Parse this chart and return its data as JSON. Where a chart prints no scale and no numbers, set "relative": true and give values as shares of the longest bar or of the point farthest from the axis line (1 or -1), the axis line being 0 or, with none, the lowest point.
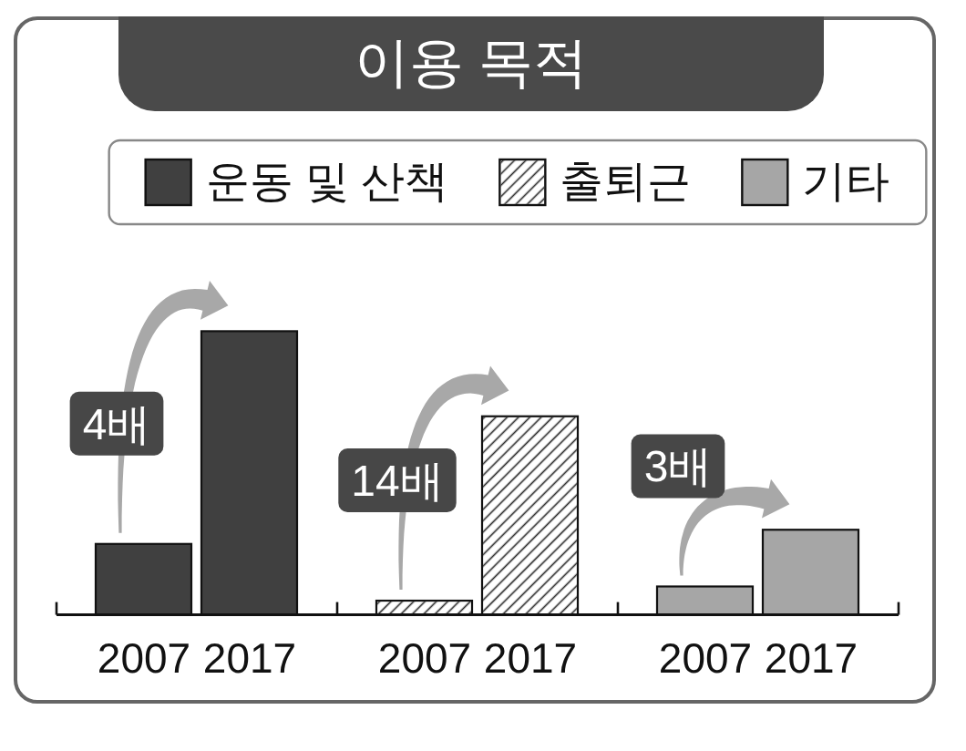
{
  "chart_data": {
    "type": "bar",
    "title": "이용 목적",
    "relative": true,
    "legend": "top",
    "categories": [
      "2007",
      "2017",
      "2007",
      "2017",
      "2007",
      "2017"
    ],
    "series": [
      {
        "name": "운동 및 산책",
        "color": "#404040",
        "values": [
          0.25,
          1,
          null,
          null,
          null,
          null
        ]
      },
      {
        "name": "출퇴근",
        "color": "#ffffff",
        "values": [
          null,
          null,
          0.05,
          0.7,
          null,
          null
        ]
      },
      {
        "name": "기타",
        "color": "#a6a6a6",
        "values": [
          null,
          null,
          null,
          null,
          0.1,
          0.3
        ]
      }
    ],
    "annotations": [
      "4배",
      "14배",
      "3배"
    ]
  }
}
